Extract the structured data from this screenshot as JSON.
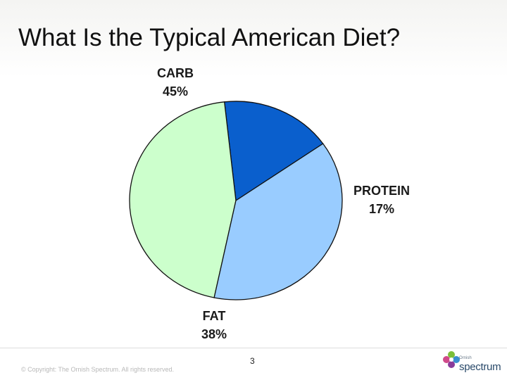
{
  "slide": {
    "title": "What Is the Typical American Diet?",
    "page_number": "3",
    "copyright": "© Copyright: The Ornish Spectrum. All rights reserved.",
    "logo": {
      "small_text": "Ornish",
      "word": "spectrum"
    }
  },
  "chart_data": {
    "type": "pie",
    "title": "",
    "start_angle_deg": -35,
    "direction": "counterclockwise",
    "slices": [
      {
        "label": "PROTEIN",
        "value": 17,
        "value_label": "17%",
        "color": "#0a5fcd"
      },
      {
        "label": "CARB",
        "value": 45,
        "value_label": "45%",
        "color": "#ccffcc"
      },
      {
        "label": "FAT",
        "value": 38,
        "value_label": "38%",
        "color": "#99ccff"
      }
    ]
  }
}
